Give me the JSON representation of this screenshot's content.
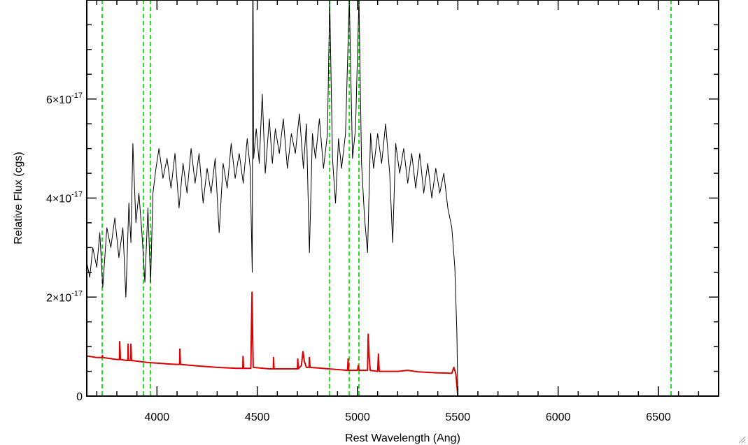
{
  "chart_data": {
    "type": "line",
    "title": "",
    "xlabel": "Rest Wavelength (Ang)",
    "ylabel": "Relative Flux (cgs)",
    "xlim": [
      3650,
      6800
    ],
    "ylim": [
      0,
      8e-17
    ],
    "grid": false,
    "x_ticks": [
      {
        "value": 4000,
        "label": "4000"
      },
      {
        "value": 4500,
        "label": "4500"
      },
      {
        "value": 5000,
        "label": "5000"
      },
      {
        "value": 5500,
        "label": "5500"
      },
      {
        "value": 6000,
        "label": "6000"
      },
      {
        "value": 6500,
        "label": "6500"
      }
    ],
    "y_ticks": [
      {
        "value": 0,
        "label": "0",
        "mant": "0",
        "exp": ""
      },
      {
        "value": 2e-17,
        "label": "2×10⁻¹⁷",
        "mant": "2×10",
        "exp": "-17"
      },
      {
        "value": 4e-17,
        "label": "4×10⁻¹⁷",
        "mant": "4×10",
        "exp": "-17"
      },
      {
        "value": 6e-17,
        "label": "6×10⁻¹⁷",
        "mant": "6×10",
        "exp": "-17"
      }
    ],
    "reference_lines_x": [
      3727,
      3933,
      3968,
      4861,
      4959,
      5007,
      6563
    ],
    "reference_line_color": "#22dd22",
    "series": [
      {
        "color": "#000000",
        "points": [
          [
            3650,
            2.7e-17
          ],
          [
            3665,
            2.4e-17
          ],
          [
            3680,
            3e-17
          ],
          [
            3700,
            2.6e-17
          ],
          [
            3715,
            3.3e-17
          ],
          [
            3730,
            2.2e-17
          ],
          [
            3750,
            3.4e-17
          ],
          [
            3770,
            3e-17
          ],
          [
            3790,
            3.6e-17
          ],
          [
            3810,
            2.8e-17
          ],
          [
            3830,
            3.4e-17
          ],
          [
            3845,
            2e-17
          ],
          [
            3860,
            3.9e-17
          ],
          [
            3870,
            3.1e-17
          ],
          [
            3880,
            5.1e-17
          ],
          [
            3895,
            3.5e-17
          ],
          [
            3910,
            4.1e-17
          ],
          [
            3925,
            3.3e-17
          ],
          [
            3940,
            2.3e-17
          ],
          [
            3955,
            3.8e-17
          ],
          [
            3968,
            2.3e-17
          ],
          [
            3980,
            4.1e-17
          ],
          [
            3995,
            4.6e-17
          ],
          [
            4010,
            5e-17
          ],
          [
            4030,
            4.4e-17
          ],
          [
            4050,
            4.8e-17
          ],
          [
            4070,
            4.2e-17
          ],
          [
            4090,
            4.9e-17
          ],
          [
            4110,
            3.8e-17
          ],
          [
            4130,
            4.7e-17
          ],
          [
            4150,
            4.1e-17
          ],
          [
            4170,
            5e-17
          ],
          [
            4190,
            4.3e-17
          ],
          [
            4210,
            4.9e-17
          ],
          [
            4230,
            3.9e-17
          ],
          [
            4250,
            4.6e-17
          ],
          [
            4270,
            4.1e-17
          ],
          [
            4290,
            4.8e-17
          ],
          [
            4310,
            3.3e-17
          ],
          [
            4330,
            4.7e-17
          ],
          [
            4350,
            4.2e-17
          ],
          [
            4370,
            5.1e-17
          ],
          [
            4390,
            4.4e-17
          ],
          [
            4410,
            4.9e-17
          ],
          [
            4430,
            4.3e-17
          ],
          [
            4450,
            5.2e-17
          ],
          [
            4465,
            4.6e-17
          ],
          [
            4475,
            2.5e-17
          ],
          [
            4478,
            9.5e-17
          ],
          [
            4482,
            4.8e-17
          ],
          [
            4495,
            5.4e-17
          ],
          [
            4510,
            4.7e-17
          ],
          [
            4525,
            6.1e-17
          ],
          [
            4540,
            4.5e-17
          ],
          [
            4560,
            5.6e-17
          ],
          [
            4575,
            4.7e-17
          ],
          [
            4590,
            5.4e-17
          ],
          [
            4610,
            4.9e-17
          ],
          [
            4630,
            5.6e-17
          ],
          [
            4650,
            4.6e-17
          ],
          [
            4670,
            5.3e-17
          ],
          [
            4690,
            4.9e-17
          ],
          [
            4710,
            5.7e-17
          ],
          [
            4730,
            4.6e-17
          ],
          [
            4745,
            5.5e-17
          ],
          [
            4760,
            2.9e-17
          ],
          [
            4775,
            5.3e-17
          ],
          [
            4790,
            4.8e-17
          ],
          [
            4810,
            5.6e-17
          ],
          [
            4830,
            4.6e-17
          ],
          [
            4850,
            5.3e-17
          ],
          [
            4861,
            8e-17
          ],
          [
            4875,
            4.8e-17
          ],
          [
            4890,
            3.9e-17
          ],
          [
            4905,
            5.2e-17
          ],
          [
            4920,
            4.6e-17
          ],
          [
            4940,
            5.3e-17
          ],
          [
            4959,
            8e-17
          ],
          [
            4975,
            4.8e-17
          ],
          [
            4990,
            5.4e-17
          ],
          [
            5007,
            8e-17
          ],
          [
            5020,
            4.7e-17
          ],
          [
            5035,
            3.6e-17
          ],
          [
            5050,
            2.9e-17
          ],
          [
            5065,
            5.3e-17
          ],
          [
            5080,
            4.6e-17
          ],
          [
            5100,
            5.3e-17
          ],
          [
            5120,
            4.7e-17
          ],
          [
            5140,
            5.5e-17
          ],
          [
            5160,
            4.5e-17
          ],
          [
            5175,
            3.1e-17
          ],
          [
            5190,
            5.1e-17
          ],
          [
            5210,
            4.5e-17
          ],
          [
            5230,
            5e-17
          ],
          [
            5250,
            4.3e-17
          ],
          [
            5270,
            4.9e-17
          ],
          [
            5290,
            4.2e-17
          ],
          [
            5310,
            4.9e-17
          ],
          [
            5330,
            4.1e-17
          ],
          [
            5350,
            4.7e-17
          ],
          [
            5370,
            4e-17
          ],
          [
            5390,
            4.6e-17
          ],
          [
            5410,
            4.1e-17
          ],
          [
            5430,
            4.5e-17
          ],
          [
            5450,
            3.8e-17
          ],
          [
            5470,
            3.4e-17
          ],
          [
            5485,
            2.6e-17
          ],
          [
            5495,
            1.3e-17
          ],
          [
            5500,
            0
          ],
          [
            5505,
            0
          ]
        ]
      },
      {
        "color": "#dd0000",
        "points": [
          [
            3650,
            8.1e-18
          ],
          [
            3700,
            7.8e-18
          ],
          [
            3727,
            7.8e-18
          ],
          [
            3728,
            8.2e-18
          ],
          [
            3730,
            7.8e-18
          ],
          [
            3800,
            7.4e-18
          ],
          [
            3813,
            7.4e-18
          ],
          [
            3814,
            1.1e-17
          ],
          [
            3818,
            7.4e-18
          ],
          [
            3850,
            7.2e-18
          ],
          [
            3855,
            7.2e-18
          ],
          [
            3856,
            1.05e-17
          ],
          [
            3858,
            7.2e-18
          ],
          [
            3869,
            7.2e-18
          ],
          [
            3870,
            1.05e-17
          ],
          [
            3873,
            7.2e-18
          ],
          [
            3950,
            6.8e-18
          ],
          [
            4050,
            6.5e-18
          ],
          [
            4100,
            6.4e-18
          ],
          [
            4113,
            6.4e-18
          ],
          [
            4114,
            9.5e-18
          ],
          [
            4117,
            6.4e-18
          ],
          [
            4200,
            6.1e-18
          ],
          [
            4300,
            5.8e-18
          ],
          [
            4400,
            5.6e-18
          ],
          [
            4428,
            5.6e-18
          ],
          [
            4429,
            8e-18
          ],
          [
            4432,
            5.6e-18
          ],
          [
            4468,
            5.6e-18
          ],
          [
            4471,
            1.4e-17
          ],
          [
            4474,
            2.1e-17
          ],
          [
            4477,
            1.2e-17
          ],
          [
            4480,
            5.8e-18
          ],
          [
            4560,
            5.5e-18
          ],
          [
            4580,
            5.5e-18
          ],
          [
            4581,
            7.8e-18
          ],
          [
            4584,
            5.5e-18
          ],
          [
            4700,
            5.5e-18
          ],
          [
            4702,
            7.5e-18
          ],
          [
            4705,
            5.5e-18
          ],
          [
            4720,
            6.2e-18
          ],
          [
            4728,
            9e-18
          ],
          [
            4735,
            7e-18
          ],
          [
            4745,
            5.8e-18
          ],
          [
            4758,
            5.8e-18
          ],
          [
            4760,
            7.8e-18
          ],
          [
            4763,
            5.8e-18
          ],
          [
            4950,
            5.2e-18
          ],
          [
            4953,
            7.5e-18
          ],
          [
            4956,
            5.2e-18
          ],
          [
            5000,
            5.2e-18
          ],
          [
            5003,
            6.2e-18
          ],
          [
            5008,
            5.2e-18
          ],
          [
            5050,
            5.2e-18
          ],
          [
            5053,
            1.25e-17
          ],
          [
            5058,
            8e-18
          ],
          [
            5063,
            5.2e-18
          ],
          [
            5100,
            5e-18
          ],
          [
            5104,
            8.5e-18
          ],
          [
            5108,
            5e-18
          ],
          [
            5200,
            5e-18
          ],
          [
            5250,
            5.2e-18
          ],
          [
            5300,
            4.9e-18
          ],
          [
            5400,
            4.7e-18
          ],
          [
            5470,
            4.6e-18
          ],
          [
            5480,
            5.8e-18
          ],
          [
            5490,
            4.5e-18
          ],
          [
            5500,
            0
          ],
          [
            6800,
            0
          ]
        ]
      }
    ]
  }
}
